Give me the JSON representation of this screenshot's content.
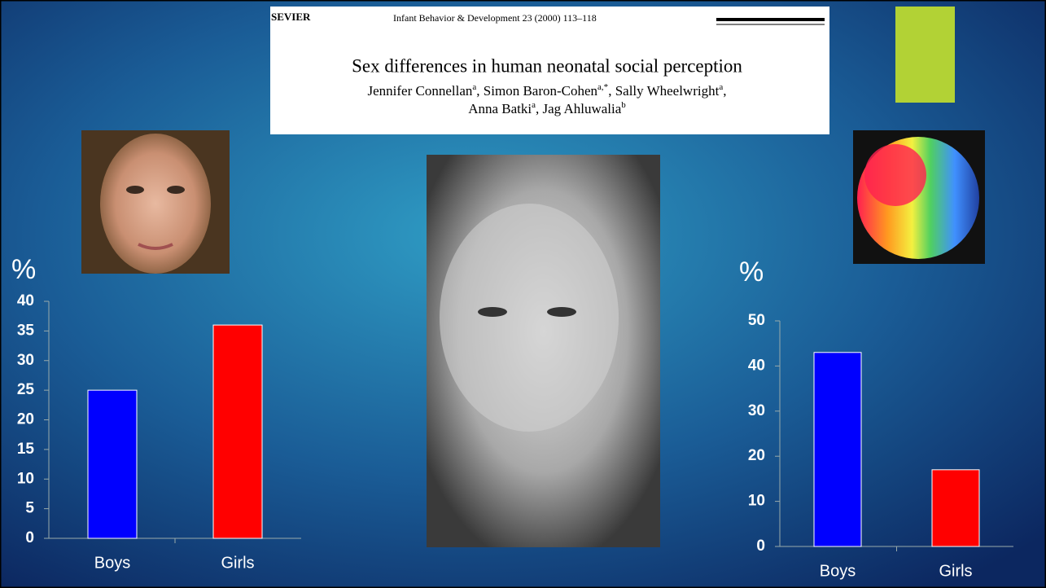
{
  "paper": {
    "publisher": "SEVIER",
    "journal": "Infant Behavior & Development 23 (2000) 113–118",
    "title": "Sex differences in human neonatal social perception",
    "author_lines": [
      [
        {
          "name": "Jennifer Connellan",
          "sup": "a",
          "after": ","
        },
        {
          "name": "Simon Baron-Cohen",
          "sup": "a,*",
          "after": ","
        },
        {
          "name": "Sally Wheelwright",
          "sup": "a",
          "after": ","
        }
      ],
      [
        {
          "name": "Anna Batki",
          "sup": "a",
          "after": ","
        },
        {
          "name": "Jag Ahluwalia",
          "sup": "b"
        }
      ]
    ]
  },
  "chart_data": [
    {
      "type": "bar",
      "ylabel": "%",
      "categories": [
        "Boys",
        "Girls"
      ],
      "values": [
        25,
        36
      ],
      "colors": [
        "#0000ff",
        "#ff0000"
      ],
      "ylim": [
        0,
        40
      ],
      "yticks": [
        0,
        5,
        10,
        15,
        20,
        25,
        30,
        35,
        40
      ]
    },
    {
      "type": "bar",
      "ylabel": "%",
      "categories": [
        "Boys",
        "Girls"
      ],
      "values": [
        43,
        17
      ],
      "colors": [
        "#0000ff",
        "#ff0000"
      ],
      "ylim": [
        0,
        50
      ],
      "yticks": [
        0,
        10,
        20,
        30,
        40,
        50
      ]
    }
  ]
}
